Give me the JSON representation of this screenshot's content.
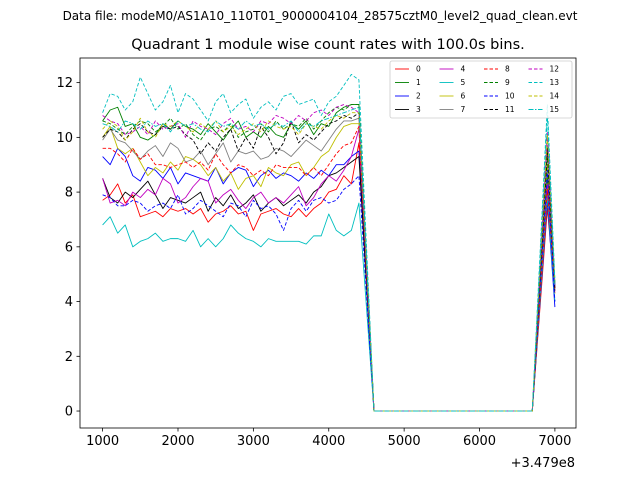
{
  "header": {
    "data_file_label": "Data file: modeM0/AS1A10_110T01_9000004104_28575cztM0_level2_quad_clean.evt"
  },
  "chart_data": {
    "type": "line",
    "title": "Quadrant 1 module wise count rates with 100.0s bins.",
    "xlabel": "",
    "ylabel": "",
    "x_offset_label": "+3.479e8",
    "xlim": [
      700,
      7280
    ],
    "ylim": [
      -0.62,
      12.9
    ],
    "xticks": [
      1000,
      2000,
      3000,
      4000,
      5000,
      6000,
      7000
    ],
    "yticks": [
      0,
      2,
      4,
      6,
      8,
      10,
      12
    ],
    "grid": false,
    "legend_position": "top-right",
    "legend_columns": 4,
    "x": [
      1000,
      1100,
      1200,
      1300,
      1400,
      1500,
      1600,
      1700,
      1800,
      1900,
      2000,
      2100,
      2200,
      2300,
      2400,
      2500,
      2600,
      2700,
      2800,
      2900,
      3000,
      3100,
      3200,
      3300,
      3400,
      3500,
      3600,
      3700,
      3800,
      3900,
      4000,
      4100,
      4200,
      4300,
      4400,
      4600,
      6700,
      6900,
      7000
    ],
    "series": [
      {
        "name": "0",
        "color": "#ff0000",
        "dash": "solid",
        "values": [
          7.7,
          7.9,
          8.3,
          7.6,
          7.9,
          7.1,
          7.2,
          7.3,
          7.1,
          7.4,
          7.3,
          7.4,
          7.2,
          7.4,
          6.9,
          7.2,
          7.3,
          7.5,
          7.2,
          7.3,
          6.6,
          7.2,
          7.3,
          7.4,
          7.2,
          7.1,
          7.4,
          7.1,
          7.4,
          7.6,
          8.0,
          8.1,
          8.6,
          8.3,
          9.8,
          0,
          0,
          7.4,
          4.3
        ]
      },
      {
        "name": "1",
        "color": "#008000",
        "dash": "solid",
        "values": [
          10.6,
          11.0,
          11.1,
          10.4,
          10.5,
          10.0,
          9.9,
          10.1,
          10.5,
          10.3,
          10.6,
          10.4,
          10.3,
          10.1,
          10.5,
          10.2,
          9.9,
          10.3,
          10.6,
          10.0,
          10.2,
          10.0,
          10.4,
          10.1,
          10.0,
          10.5,
          10.3,
          10.6,
          10.1,
          10.5,
          10.4,
          10.9,
          11.1,
          11.2,
          11.2,
          0,
          0,
          8.6,
          4.6
        ]
      },
      {
        "name": "2",
        "color": "#0000ff",
        "dash": "solid",
        "values": [
          9.3,
          9.0,
          9.6,
          9.3,
          8.6,
          8.4,
          8.9,
          8.8,
          8.5,
          8.9,
          8.3,
          8.7,
          8.6,
          8.5,
          8.4,
          8.9,
          8.3,
          8.7,
          8.9,
          8.8,
          8.2,
          8.6,
          8.8,
          8.5,
          8.7,
          8.6,
          8.4,
          8.7,
          8.5,
          8.8,
          8.6,
          9.0,
          9.0,
          9.3,
          9.5,
          0,
          0,
          7.7,
          3.8
        ]
      },
      {
        "name": "3",
        "color": "#000000",
        "dash": "solid",
        "values": [
          8.5,
          7.8,
          7.6,
          8.0,
          7.8,
          8.1,
          8.4,
          7.9,
          7.4,
          7.8,
          7.7,
          7.6,
          7.8,
          8.0,
          7.3,
          7.8,
          7.5,
          7.9,
          7.4,
          7.6,
          7.9,
          7.3,
          7.6,
          7.8,
          7.5,
          7.7,
          7.9,
          7.6,
          8.0,
          8.2,
          8.6,
          8.7,
          8.9,
          9.1,
          9.3,
          0,
          0,
          8.0,
          4.4
        ]
      },
      {
        "name": "4",
        "color": "#c000c0",
        "dash": "solid",
        "values": [
          8.5,
          7.6,
          7.7,
          7.5,
          8.0,
          7.8,
          8.1,
          7.9,
          8.5,
          8.3,
          7.6,
          7.8,
          8.2,
          8.5,
          8.4,
          7.6,
          7.9,
          8.1,
          7.7,
          7.4,
          7.8,
          8.0,
          7.6,
          7.8,
          7.6,
          7.9,
          8.2,
          7.5,
          7.8,
          8.3,
          8.6,
          8.4,
          8.8,
          9.3,
          10.3,
          0,
          0,
          8.3,
          4.5
        ]
      },
      {
        "name": "5",
        "color": "#00bfbf",
        "dash": "solid",
        "values": [
          6.8,
          7.1,
          6.5,
          6.8,
          6.0,
          6.2,
          6.3,
          6.5,
          6.2,
          6.3,
          6.3,
          6.2,
          6.6,
          6.0,
          6.3,
          6.0,
          6.3,
          6.8,
          6.5,
          6.3,
          6.2,
          6.0,
          6.3,
          6.2,
          6.2,
          6.2,
          6.2,
          6.1,
          6.4,
          6.4,
          7.2,
          6.6,
          6.4,
          6.6,
          7.6,
          0,
          0,
          7.9,
          4.0
        ]
      },
      {
        "name": "6",
        "color": "#bfbf00",
        "dash": "solid",
        "values": [
          10.0,
          10.4,
          9.6,
          9.4,
          9.6,
          9.1,
          8.6,
          8.9,
          8.7,
          9.1,
          8.8,
          9.3,
          9.2,
          9.0,
          8.6,
          8.9,
          8.4,
          8.7,
          8.1,
          8.5,
          8.6,
          8.2,
          8.9,
          8.7,
          8.6,
          9.0,
          9.1,
          8.6,
          8.9,
          9.3,
          9.5,
          10.0,
          10.4,
          10.5,
          10.5,
          0,
          0,
          9.0,
          4.6
        ]
      },
      {
        "name": "7",
        "color": "#808080",
        "dash": "solid",
        "values": [
          9.9,
          10.3,
          9.9,
          9.8,
          9.5,
          9.2,
          9.5,
          9.7,
          9.3,
          9.8,
          9.6,
          9.1,
          9.2,
          9.5,
          9.0,
          9.4,
          9.8,
          9.1,
          9.5,
          9.4,
          9.5,
          9.2,
          9.3,
          9.6,
          9.5,
          9.3,
          9.6,
          9.9,
          9.7,
          9.5,
          9.9,
          10.3,
          10.6,
          10.6,
          10.7,
          0,
          0,
          9.7,
          4.6
        ]
      },
      {
        "name": "8",
        "color": "#ff0000",
        "dash": "dashed",
        "values": [
          9.6,
          9.6,
          9.4,
          9.1,
          9.6,
          9.2,
          9.4,
          9.0,
          9.0,
          8.9,
          9.0,
          9.1,
          8.9,
          9.1,
          8.8,
          9.4,
          9.0,
          8.7,
          9.0,
          8.9,
          8.6,
          8.8,
          8.6,
          9.0,
          8.9,
          8.9,
          8.9,
          8.6,
          8.9,
          8.6,
          9.0,
          9.4,
          9.7,
          9.8,
          10.4,
          0,
          0,
          8.1,
          4.4
        ]
      },
      {
        "name": "9",
        "color": "#008000",
        "dash": "dashed",
        "values": [
          10.6,
          10.5,
          10.3,
          10.1,
          10.4,
          10.6,
          10.5,
          10.2,
          10.4,
          10.7,
          10.3,
          10.5,
          10.1,
          9.9,
          10.3,
          10.4,
          10.2,
          10.5,
          10.0,
          10.2,
          10.3,
          10.5,
          10.2,
          10.6,
          10.3,
          10.5,
          10.4,
          10.7,
          10.3,
          10.6,
          10.9,
          11.1,
          11.0,
          11.2,
          11.2,
          0,
          0,
          9.3,
          4.7
        ]
      },
      {
        "name": "10",
        "color": "#0000ff",
        "dash": "dashed",
        "values": [
          7.9,
          7.8,
          7.5,
          7.5,
          7.7,
          7.6,
          7.3,
          7.5,
          7.6,
          7.4,
          7.9,
          7.2,
          7.4,
          7.7,
          7.5,
          7.3,
          7.1,
          7.6,
          7.5,
          7.1,
          7.7,
          7.4,
          7.5,
          7.2,
          6.6,
          7.4,
          7.7,
          7.3,
          7.7,
          7.8,
          7.6,
          7.7,
          8.1,
          8.3,
          8.6,
          0,
          0,
          8.8,
          4.0
        ]
      },
      {
        "name": "11",
        "color": "#000000",
        "dash": "dashed",
        "values": [
          10.0,
          10.3,
          10.2,
          9.9,
          10.3,
          10.5,
          10.2,
          10.1,
          10.4,
          10.3,
          10.4,
          10.1,
          9.9,
          9.4,
          9.8,
          9.5,
          10.0,
          10.3,
          9.5,
          10.0,
          9.6,
          10.4,
          10.0,
          9.4,
          9.8,
          10.6,
          9.8,
          10.1,
          9.9,
          10.2,
          10.5,
          10.6,
          10.8,
          10.7,
          10.9,
          0,
          0,
          9.6,
          4.5
        ]
      },
      {
        "name": "12",
        "color": "#c000c0",
        "dash": "dashed",
        "values": [
          10.8,
          10.6,
          10.5,
          10.1,
          10.2,
          10.4,
          10.1,
          10.6,
          10.3,
          10.4,
          10.5,
          10.0,
          10.6,
          10.4,
          10.3,
          10.1,
          10.5,
          10.7,
          10.3,
          10.4,
          10.2,
          10.6,
          10.5,
          10.8,
          10.7,
          10.5,
          10.8,
          10.6,
          10.9,
          11.0,
          10.8,
          11.1,
          11.2,
          11.1,
          10.9,
          0,
          0,
          10.2,
          4.6
        ]
      },
      {
        "name": "13",
        "color": "#00bfbf",
        "dash": "dashed",
        "values": [
          10.9,
          11.6,
          11.5,
          11.0,
          11.3,
          12.2,
          11.6,
          11.0,
          11.3,
          11.9,
          10.9,
          11.6,
          11.4,
          11.0,
          10.6,
          11.3,
          11.6,
          10.9,
          11.2,
          11.4,
          10.7,
          11.1,
          11.3,
          11.0,
          11.5,
          11.6,
          11.2,
          11.3,
          11.4,
          10.8,
          11.3,
          11.5,
          11.9,
          12.3,
          12.1,
          0,
          0,
          11.2,
          4.8
        ]
      },
      {
        "name": "14",
        "color": "#bfbf00",
        "dash": "dashed",
        "values": [
          10.3,
          10.6,
          10.4,
          9.9,
          10.2,
          10.7,
          10.2,
          10.0,
          10.5,
          10.4,
          10.6,
          10.4,
          10.2,
          10.5,
          10.3,
          10.6,
          10.2,
          10.4,
          10.1,
          10.3,
          10.5,
          10.2,
          10.6,
          10.4,
          10.3,
          10.4,
          10.1,
          10.5,
          10.4,
          10.3,
          10.6,
          10.8,
          10.7,
          10.9,
          10.9,
          0,
          0,
          10.1,
          4.7
        ]
      },
      {
        "name": "15",
        "color": "#00bfbf",
        "dash": "dashdot",
        "values": [
          10.5,
          10.4,
          10.2,
          10.6,
          10.5,
          10.3,
          10.6,
          10.4,
          10.5,
          10.2,
          10.6,
          10.4,
          10.5,
          10.3,
          10.2,
          10.6,
          10.4,
          10.5,
          10.3,
          10.6,
          10.4,
          10.5,
          10.3,
          10.5,
          10.4,
          10.6,
          10.2,
          10.5,
          10.4,
          10.6,
          10.7,
          10.8,
          10.9,
          11.0,
          11.1,
          0,
          0,
          10.8,
          4.6
        ]
      }
    ]
  }
}
